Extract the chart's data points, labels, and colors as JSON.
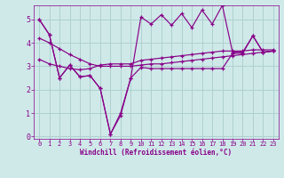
{
  "background_color": "#cfe9e9",
  "grid_color": "#b0d0d0",
  "line_color": "#880088",
  "marker": "+",
  "xlabel": "Windchill (Refroidissement éolien,°C)",
  "xlabel_color": "#880088",
  "tick_color": "#880088",
  "ylabel_color": "#880088",
  "ylim": [
    -0.1,
    5.6
  ],
  "xlim": [
    -0.5,
    23.5
  ],
  "yticks": [
    0,
    1,
    2,
    3,
    4,
    5
  ],
  "xticks": [
    0,
    1,
    2,
    3,
    4,
    5,
    6,
    7,
    8,
    9,
    10,
    11,
    12,
    13,
    14,
    15,
    16,
    17,
    18,
    19,
    20,
    21,
    22,
    23
  ],
  "series": [
    [
      5.0,
      4.35,
      2.5,
      3.05,
      2.55,
      2.6,
      2.05,
      0.1,
      1.0,
      2.5,
      5.1,
      4.8,
      5.2,
      4.75,
      5.25,
      4.65,
      5.4,
      4.8,
      5.6,
      3.6,
      3.6,
      4.3,
      3.6,
      3.65
    ],
    [
      5.0,
      4.35,
      2.5,
      3.05,
      2.55,
      2.6,
      2.05,
      0.1,
      0.9,
      2.5,
      2.95,
      2.9,
      2.9,
      2.9,
      2.9,
      2.9,
      2.9,
      2.9,
      2.9,
      3.55,
      3.55,
      4.3,
      3.6,
      3.65
    ],
    [
      3.3,
      3.1,
      3.0,
      2.9,
      2.85,
      2.9,
      3.05,
      3.1,
      3.1,
      3.1,
      3.25,
      3.3,
      3.35,
      3.4,
      3.45,
      3.5,
      3.55,
      3.6,
      3.65,
      3.65,
      3.65,
      3.7,
      3.7,
      3.7
    ],
    [
      4.2,
      4.0,
      3.75,
      3.5,
      3.3,
      3.1,
      3.0,
      3.0,
      3.0,
      3.0,
      3.05,
      3.1,
      3.1,
      3.15,
      3.2,
      3.25,
      3.3,
      3.35,
      3.4,
      3.45,
      3.5,
      3.55,
      3.6,
      3.65
    ]
  ]
}
